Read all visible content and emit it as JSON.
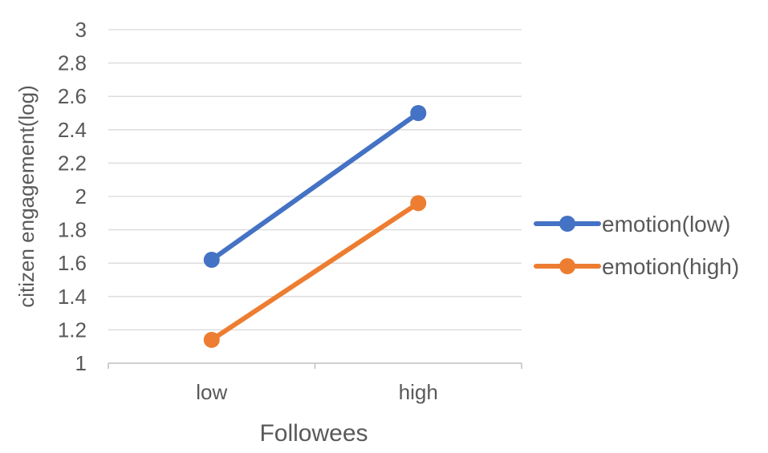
{
  "chart_data": {
    "type": "line",
    "categories": [
      "low",
      "high"
    ],
    "series": [
      {
        "name": "emotion(low)",
        "values": [
          1.62,
          2.5
        ],
        "color": "#4472C4"
      },
      {
        "name": "emotion(high)",
        "values": [
          1.14,
          1.96
        ],
        "color": "#ED7D31"
      }
    ],
    "xlabel": "Followees",
    "ylabel": "citizen engagement(log)",
    "ylim": [
      1,
      3
    ],
    "yticks": [
      "1",
      "1.2",
      "1.4",
      "1.6",
      "1.8",
      "2",
      "2.2",
      "2.4",
      "2.6",
      "2.8",
      "3"
    ],
    "grid": true,
    "legend": "right",
    "colors": {
      "gridline": "#D9D9D9",
      "axis": "#BFBFBF",
      "text": "#595959"
    }
  }
}
